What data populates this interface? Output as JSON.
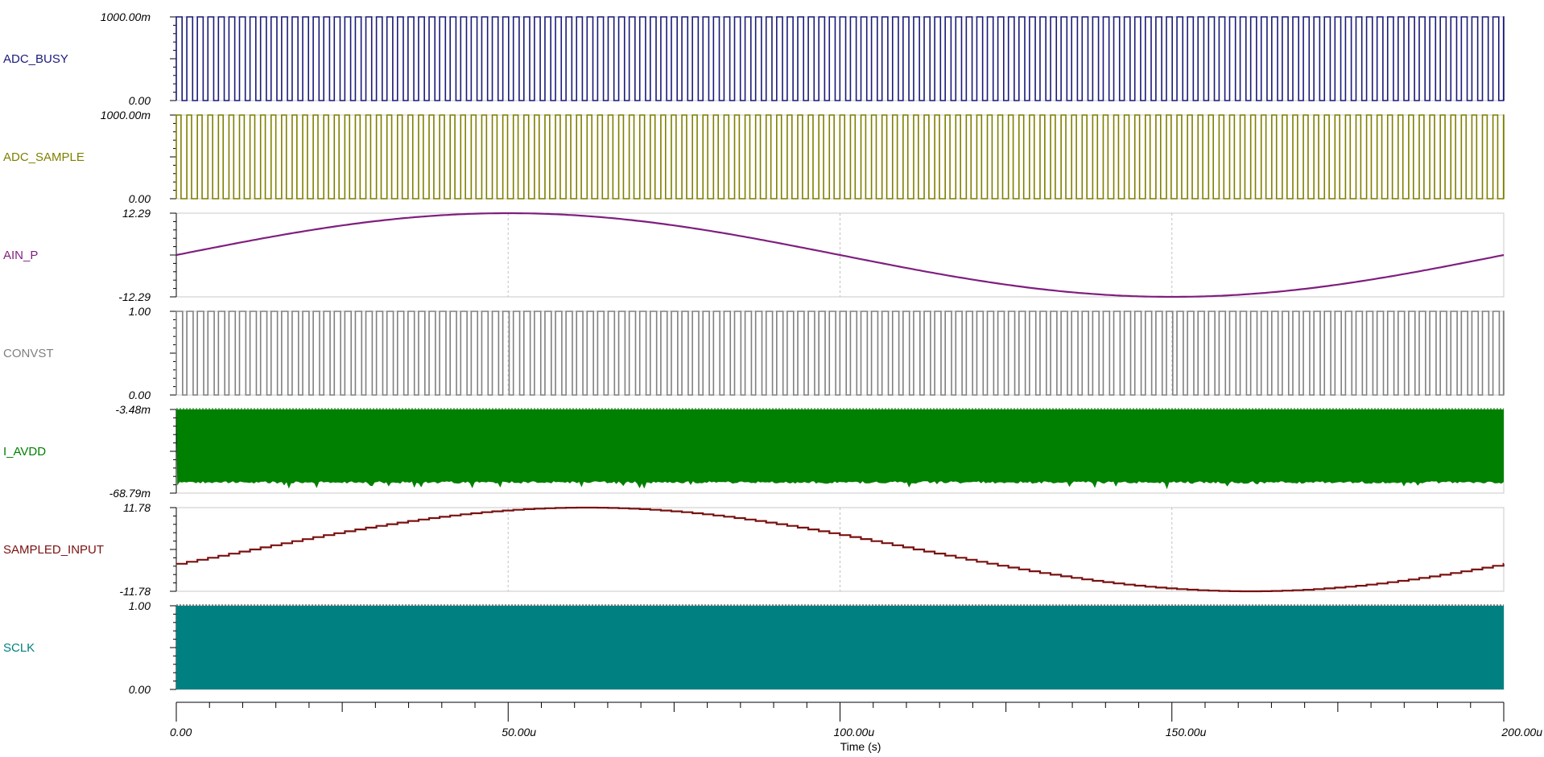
{
  "chart_data": {
    "type": "line",
    "xlabel": "Time (s)",
    "x_unit_suffix": "u",
    "xlim": [
      0,
      200
    ],
    "x_ticks": [
      0,
      50,
      100,
      150,
      200
    ],
    "x_tick_labels": [
      "0.00",
      "50.00u",
      "100.00u",
      "150.00u",
      "200.00u"
    ],
    "traces": [
      {
        "name": "ADC_BUSY",
        "color": "#1a1a7a",
        "kind": "pulse",
        "ylim": [
          0,
          1
        ],
        "ymax_label": "1000.00m",
        "ymin_label": "0.00",
        "period_us": 1.587,
        "duty": 0.55,
        "grid": false
      },
      {
        "name": "ADC_SAMPLE",
        "color": "#7f7f00",
        "kind": "pulse",
        "ylim": [
          0,
          1
        ],
        "ymax_label": "1000.00m",
        "ymin_label": "0.00",
        "period_us": 1.587,
        "duty": 0.45,
        "grid": false
      },
      {
        "name": "AIN_P",
        "color": "#7f1f7f",
        "kind": "sine",
        "ylim": [
          -12.29,
          12.29
        ],
        "ymax_label": "12.29",
        "ymin_label": "-12.29",
        "amplitude": 12.29,
        "frequency_khz": 5,
        "phase_deg": 0,
        "grid": true
      },
      {
        "name": "CONVST",
        "color": "#808080",
        "kind": "pulse",
        "ylim": [
          0,
          1
        ],
        "ymax_label": "1.00",
        "ymin_label": "0.00",
        "period_us": 1.587,
        "duty": 0.6,
        "grid": true
      },
      {
        "name": "I_AVDD",
        "color": "#008000",
        "kind": "noise_band",
        "ylim": [
          -68.79,
          -3.48
        ],
        "ymax_label": "-3.48m",
        "ymin_label": "-68.79m",
        "band": [
          -62,
          -3.48
        ],
        "grid": false
      },
      {
        "name": "SAMPLED_INPUT",
        "color": "#7a1010",
        "kind": "sampled_sine",
        "ylim": [
          -11.78,
          11.78
        ],
        "ymax_label": "11.78",
        "ymin_label": "-11.78",
        "amplitude": 11.78,
        "frequency_khz": 5,
        "phase_deg": -20,
        "sample_period_us": 1.587,
        "grid": true
      },
      {
        "name": "SCLK",
        "color": "#008080",
        "kind": "solid_band",
        "ylim": [
          0,
          1
        ],
        "ymax_label": "1.00",
        "ymin_label": "0.00",
        "grid": false
      }
    ]
  }
}
